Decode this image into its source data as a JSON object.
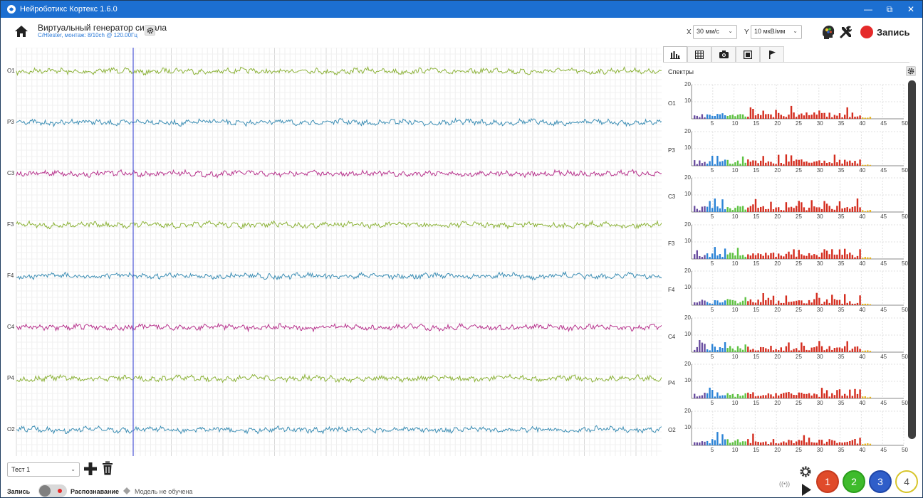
{
  "window": {
    "title": "Нейроботикс Кортекс 1.6.0",
    "minimize": "—",
    "maximize": "⧉",
    "close": "✕"
  },
  "header": {
    "source_title": "Виртуальный генератор сигнала",
    "source_subtitle": "C/Htester, монтаж: 8/10ch @ 120.00Гц",
    "x_label": "X",
    "x_value": "30 мм/с",
    "y_label": "Y",
    "y_value": "10 мкВ/мм",
    "record_label": "Запись",
    "record_color": "#e52a2a"
  },
  "channels": [
    {
      "name": "O1",
      "color": "#8db33a"
    },
    {
      "name": "P3",
      "color": "#3e8fb5"
    },
    {
      "name": "C3",
      "color": "#b8358e"
    },
    {
      "name": "F3",
      "color": "#8db33a"
    },
    {
      "name": "F4",
      "color": "#3e8fb5"
    },
    {
      "name": "C4",
      "color": "#b8358e"
    },
    {
      "name": "P4",
      "color": "#8db33a"
    },
    {
      "name": "O2",
      "color": "#3e8fb5"
    }
  ],
  "right_panel": {
    "tabs": [
      "chart-bars-icon",
      "table-icon",
      "camera-icon",
      "stop-square-icon",
      "flag-icon"
    ],
    "spectra_title": "Спектры",
    "y_ticks": [
      "20",
      "10"
    ],
    "x_ticks": [
      "5",
      "10",
      "15",
      "20",
      "25",
      "30",
      "35",
      "40",
      "45",
      "50"
    ]
  },
  "bottom": {
    "test_select": "Тест 1",
    "record_label": "Запись",
    "recognition_label": "Распознавание",
    "model_status": "Модель не обучена",
    "class_buttons": [
      {
        "label": "1",
        "fill": "#e04b2a",
        "ring": "#c63b1f",
        "text": "#ffffff"
      },
      {
        "label": "2",
        "fill": "#3ebb2c",
        "ring": "#2a9e1b",
        "text": "#ffffff"
      },
      {
        "label": "3",
        "fill": "#2f5ec9",
        "ring": "#1f46a8",
        "text": "#ffffff"
      },
      {
        "label": "4",
        "fill": "#ffffff",
        "ring": "#d7c52b",
        "text": "#555555"
      }
    ]
  },
  "colors": {
    "titlebar": "#1c6fd1",
    "cursor_line": "#4b55d6"
  }
}
